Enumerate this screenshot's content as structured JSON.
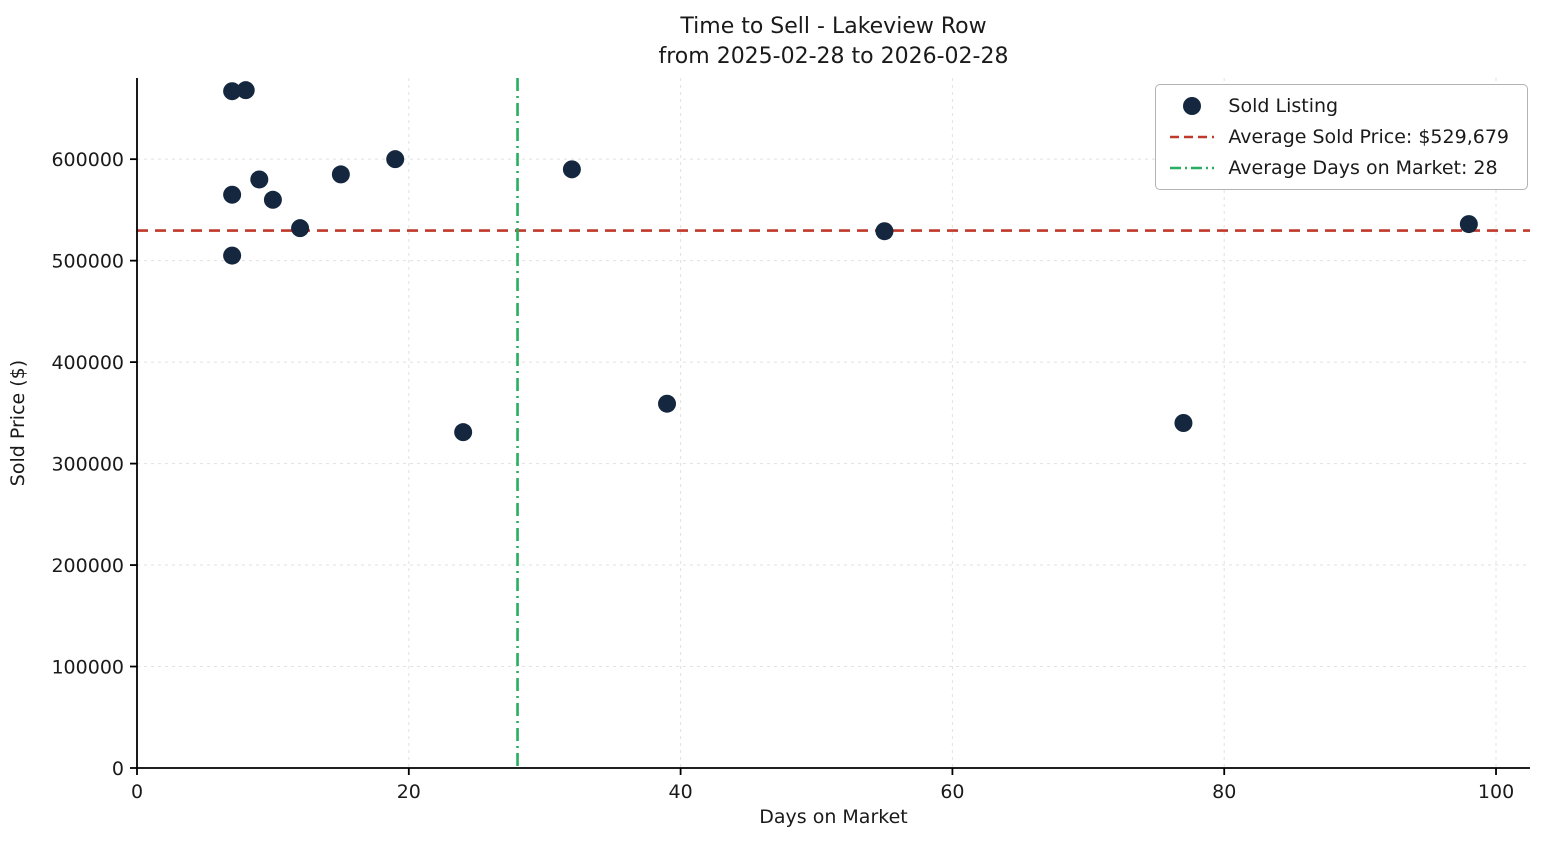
{
  "chart_data": {
    "type": "scatter",
    "title": "Time to Sell - Lakeview Row",
    "subtitle": "from 2025-02-28 to 2026-02-28",
    "xlabel": "Days on Market",
    "ylabel": "Sold Price ($)",
    "xlim": [
      0,
      102.5
    ],
    "ylim": [
      0,
      680000
    ],
    "xticks": [
      0,
      20,
      40,
      60,
      80,
      100
    ],
    "yticks": [
      0,
      100000,
      200000,
      300000,
      400000,
      500000,
      600000
    ],
    "grid": true,
    "legend_position": "upper right",
    "points": [
      {
        "x": 7,
        "y": 667000
      },
      {
        "x": 8,
        "y": 668000
      },
      {
        "x": 7,
        "y": 565000
      },
      {
        "x": 7,
        "y": 505000
      },
      {
        "x": 9,
        "y": 580000
      },
      {
        "x": 10,
        "y": 560000
      },
      {
        "x": 12,
        "y": 532000
      },
      {
        "x": 15,
        "y": 585000
      },
      {
        "x": 19,
        "y": 600000
      },
      {
        "x": 24,
        "y": 331000
      },
      {
        "x": 32,
        "y": 590000
      },
      {
        "x": 39,
        "y": 359000
      },
      {
        "x": 55,
        "y": 529000
      },
      {
        "x": 77,
        "y": 340000
      },
      {
        "x": 98,
        "y": 536000
      }
    ],
    "average_sold_price": 529679,
    "average_days_on_market": 28,
    "colors": {
      "point": "#14273f",
      "avg_price_line": "#c0392b",
      "avg_days_line": "#27ae60"
    },
    "legend": [
      {
        "label": "Sold Listing",
        "marker": "dot"
      },
      {
        "label": "Average Sold Price: $529,679",
        "marker": "dashed-line"
      },
      {
        "label": "Average Days on Market: 28",
        "marker": "dashdot-line"
      }
    ]
  }
}
